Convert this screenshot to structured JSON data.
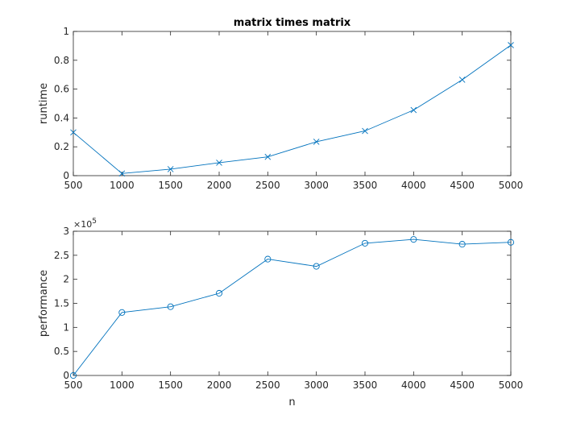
{
  "chart_data": [
    {
      "type": "line",
      "title": "matrix times matrix",
      "xlabel": "",
      "ylabel": "runtime",
      "marker": "x",
      "color": "#0072BD",
      "x": [
        500,
        1000,
        1500,
        2000,
        2500,
        3000,
        3500,
        4000,
        4500,
        5000
      ],
      "values": [
        0.3,
        0.015,
        0.045,
        0.09,
        0.13,
        0.235,
        0.31,
        0.455,
        0.665,
        0.905
      ],
      "xlim": [
        500,
        5000
      ],
      "ylim": [
        0,
        1
      ],
      "xticks": [
        "500",
        "1000",
        "1500",
        "2000",
        "2500",
        "3000",
        "3500",
        "4000",
        "4500",
        "5000"
      ],
      "yticks": [
        "0",
        "0.2",
        "0.4",
        "0.6",
        "0.8",
        "1"
      ],
      "grid": false
    },
    {
      "type": "line",
      "title": "",
      "xlabel": "n",
      "ylabel": "performance",
      "marker": "o",
      "color": "#0072BD",
      "x": [
        500,
        1000,
        1500,
        2000,
        2500,
        3000,
        3500,
        4000,
        4500,
        5000
      ],
      "values": [
        0,
        131000,
        143000,
        171000,
        242000,
        227000,
        275000,
        283000,
        273000,
        277000
      ],
      "xlim": [
        500,
        5000
      ],
      "ylim": [
        0,
        300000
      ],
      "xticks": [
        "500",
        "1000",
        "1500",
        "2000",
        "2500",
        "3000",
        "3500",
        "4000",
        "4500",
        "5000"
      ],
      "yticks": [
        "0",
        "0.5",
        "1",
        "1.5",
        "2",
        "2.5",
        "3"
      ],
      "y_exponent_base": "×10",
      "y_exponent_power": "5",
      "grid": false
    }
  ]
}
